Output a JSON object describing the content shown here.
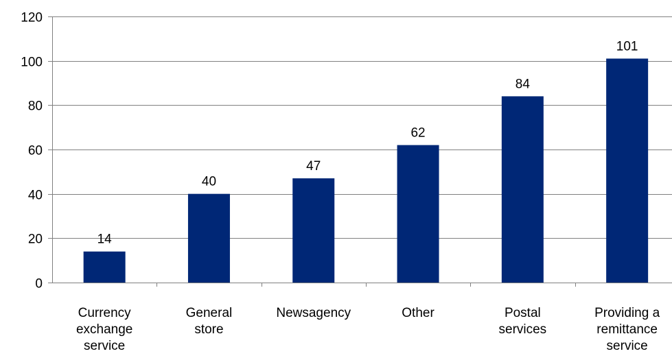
{
  "chart_data": {
    "type": "bar",
    "categories": [
      [
        "Currency",
        "exchange",
        "service"
      ],
      [
        "General",
        "store"
      ],
      [
        "Newsagency"
      ],
      [
        "Other"
      ],
      [
        "Postal",
        "services"
      ],
      [
        "Providing a",
        "remittance",
        "service"
      ]
    ],
    "values": [
      14,
      40,
      47,
      62,
      84,
      101
    ],
    "ylim": [
      0,
      120
    ],
    "yticks": [
      "0",
      "20",
      "40",
      "60",
      "80",
      "100",
      "120"
    ],
    "grid": true,
    "bar_color": "#002776",
    "grid_color": "#808080"
  }
}
